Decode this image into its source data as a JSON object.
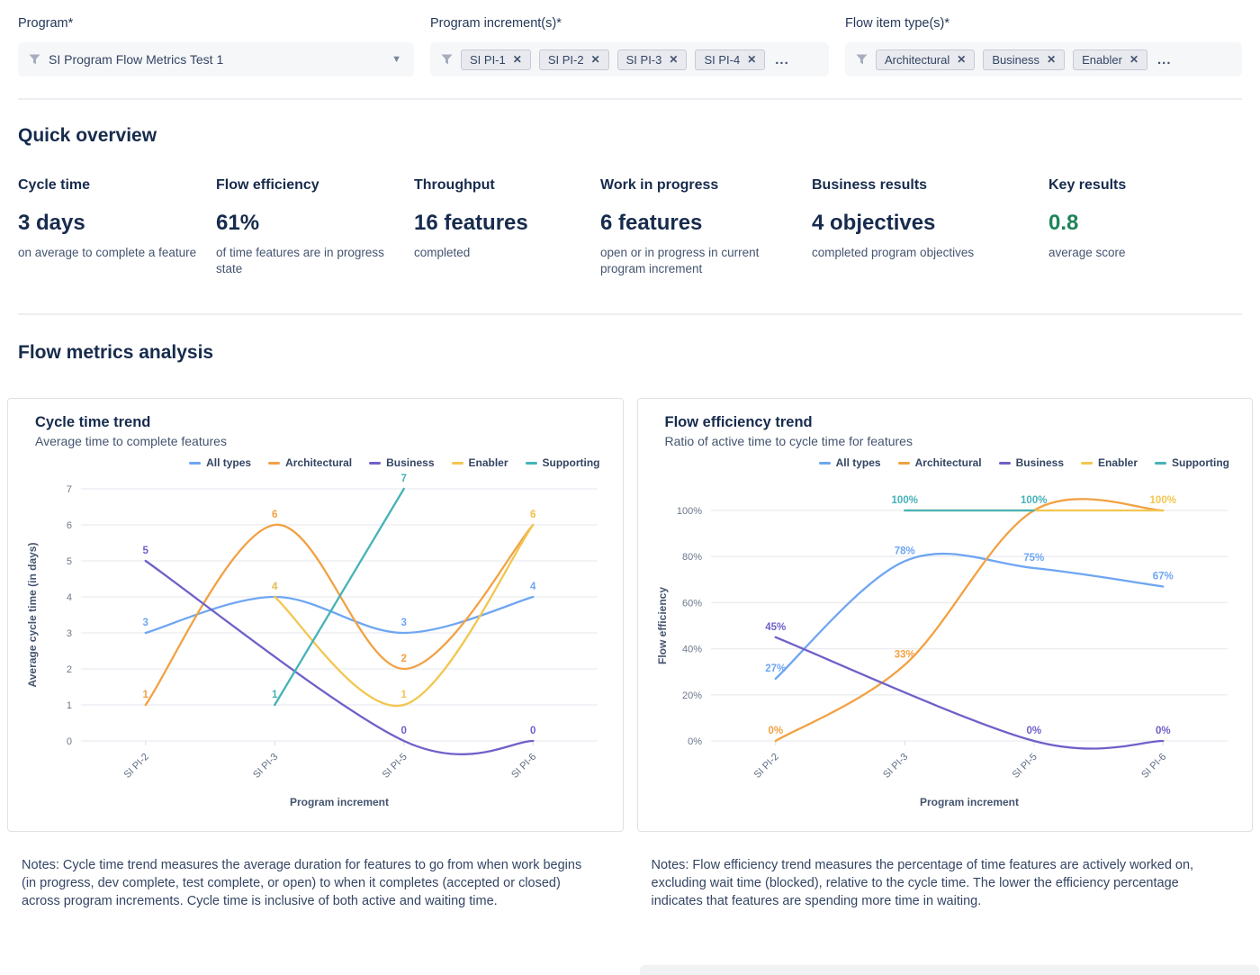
{
  "filters": {
    "program": {
      "label": "Program*",
      "value": "SI Program Flow Metrics Test 1"
    },
    "program_increments": {
      "label": "Program increment(s)*",
      "chips": [
        "SI PI-1",
        "SI PI-2",
        "SI PI-3",
        "SI PI-4"
      ],
      "more": "..."
    },
    "flow_item_types": {
      "label": "Flow item type(s)*",
      "chips": [
        "Architectural",
        "Business",
        "Enabler"
      ],
      "more": "..."
    }
  },
  "quick_overview": {
    "title": "Quick overview",
    "metrics": [
      {
        "label": "Cycle time",
        "value": "3 days",
        "description": "on average to complete a feature"
      },
      {
        "label": "Flow efficiency",
        "value": "61%",
        "description": "of time features are in progress state"
      },
      {
        "label": "Throughput",
        "value": "16 features",
        "description": "completed"
      },
      {
        "label": "Work in progress",
        "value": "6 features",
        "description": "open or in progress in current program increment"
      },
      {
        "label": "Business results",
        "value": "4 objectives",
        "description": "completed program objectives"
      },
      {
        "label": "Key results",
        "value": "0.8",
        "description": "average score",
        "value_color": "#1F845A"
      }
    ]
  },
  "flow_metrics_section": {
    "title": "Flow metrics analysis"
  },
  "chart_data": [
    {
      "type": "line",
      "title": "Cycle time trend",
      "subtitle": "Average time to complete features",
      "xlabel": "Program increment",
      "ylabel": "Average cycle time (in days)",
      "categories": [
        "SI PI-2",
        "SI PI-3",
        "SI PI-5",
        "SI PI-6"
      ],
      "ylim": [
        0,
        7
      ],
      "yticks": [
        0,
        1,
        2,
        3,
        4,
        5,
        6,
        7
      ],
      "tick_suffix": "",
      "grid": true,
      "legend_position": "top-right",
      "series": [
        {
          "name": "All types",
          "color": "#6EA6F2",
          "values": [
            3,
            4,
            3,
            4
          ],
          "labels": [
            "3",
            "4",
            "3",
            "4"
          ]
        },
        {
          "name": "Architectural",
          "color": "#F2A144",
          "values": [
            1,
            6,
            2,
            6
          ],
          "labels": [
            "1",
            "6",
            "2",
            "6"
          ]
        },
        {
          "name": "Business",
          "color": "#6E60C9",
          "values": [
            5,
            null,
            0,
            0
          ],
          "labels": [
            "5",
            null,
            "0",
            "0"
          ]
        },
        {
          "name": "Enabler",
          "color": "#F2C64F",
          "values": [
            null,
            4,
            1,
            6
          ],
          "labels": [
            null,
            "4",
            "1",
            "6"
          ]
        },
        {
          "name": "Supporting",
          "color": "#45B2B8",
          "values": [
            null,
            1,
            7,
            null
          ],
          "labels": [
            null,
            "1",
            "7",
            null
          ]
        }
      ]
    },
    {
      "type": "line",
      "title": "Flow efficiency trend",
      "subtitle": "Ratio of active time to cycle time for features",
      "xlabel": "Program increment",
      "ylabel": "Flow efficiency",
      "categories": [
        "SI PI-2",
        "SI PI-3",
        "SI PI-5",
        "SI PI-6"
      ],
      "ylim": [
        0,
        100
      ],
      "yticks": [
        0,
        20,
        40,
        60,
        80,
        100
      ],
      "tick_suffix": "%",
      "grid": true,
      "legend_position": "top-right",
      "series": [
        {
          "name": "All types",
          "color": "#6EA6F2",
          "values": [
            27,
            78,
            75,
            67
          ],
          "labels": [
            "27%",
            "78%",
            "75%",
            "67%"
          ]
        },
        {
          "name": "Architectural",
          "color": "#F2A144",
          "values": [
            0,
            33,
            100,
            100
          ],
          "labels": [
            "0%",
            "33%",
            null,
            null
          ]
        },
        {
          "name": "Business",
          "color": "#6E60C9",
          "values": [
            45,
            null,
            0,
            0
          ],
          "labels": [
            "45%",
            null,
            "0%",
            "0%"
          ]
        },
        {
          "name": "Enabler",
          "color": "#F2C64F",
          "values": [
            null,
            100,
            100,
            100
          ],
          "labels": [
            null,
            null,
            null,
            "100%"
          ]
        },
        {
          "name": "Supporting",
          "color": "#45B2B8",
          "values": [
            null,
            100,
            100,
            null
          ],
          "labels": [
            null,
            "100%",
            "100%",
            null
          ]
        }
      ]
    }
  ],
  "notes": {
    "cycle_time": "Notes: Cycle time trend measures the average duration for features to go from when work begins (in progress, dev complete, test complete, or open) to when it completes (accepted or closed) across program increments. Cycle time is inclusive of both active and waiting time.",
    "flow_efficiency": "Notes: Flow efficiency trend measures the percentage of time features are actively worked on, excluding wait time (blocked), relative to the cycle time. The lower the efficiency percentage indicates that features are spending more time in waiting."
  },
  "colors": {
    "heading": "#172B4D",
    "body_text": "#344563",
    "positive_green": "#1F845A",
    "gridline": "#EBECF0",
    "series_all_types": "#6EA6F2",
    "series_architectural": "#F2A144",
    "series_business": "#6E60C9",
    "series_enabler": "#F2C64F",
    "series_supporting": "#45B2B8"
  }
}
